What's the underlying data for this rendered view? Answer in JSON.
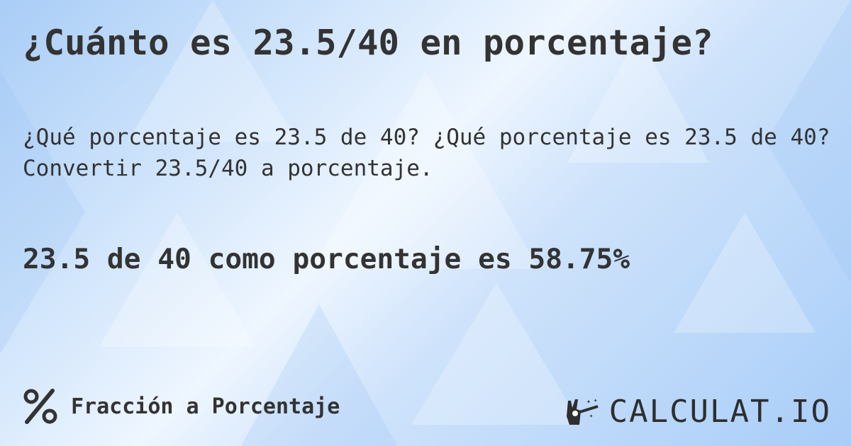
{
  "title": "¿Cuánto es 23.5/40 en porcentaje?",
  "subtitle": "¿Qué porcentaje es 23.5 de 40? ¿Qué porcentaje es 23.5 de 40? Convertir 23.5/40 a porcentaje.",
  "result": "23.5 de 40 como porcentaje es 58.75%",
  "footer": {
    "icon": "percent-icon",
    "label": "Fracción a Porcentaje"
  },
  "logo": {
    "text": "CALCULAT.IO",
    "icon": "magic-hand-icon"
  },
  "colors": {
    "text": "#333333",
    "background": "#cfe3fb"
  }
}
